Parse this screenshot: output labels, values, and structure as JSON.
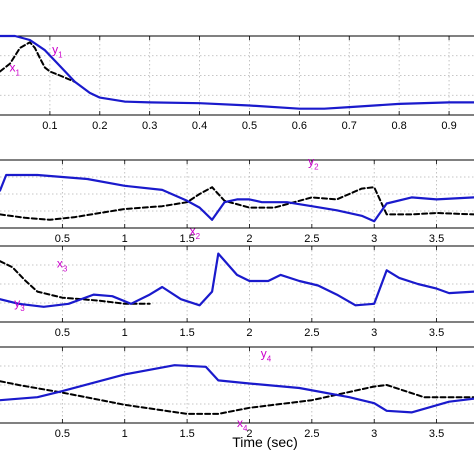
{
  "figure": {
    "xlabel": "Time (sec)"
  },
  "colors": {
    "solid": "#1a1acc",
    "dashed": "#000000",
    "label": "#cc00cc",
    "grid": "#b4b4b4"
  },
  "chart_data": [
    {
      "type": "line",
      "xlim": [
        0,
        0.95
      ],
      "xticks": [
        0.1,
        0.2,
        0.3,
        0.4,
        0.5,
        0.6,
        0.7,
        0.8,
        0.9
      ],
      "xtick_labels": [
        "0.1",
        "0.2",
        "0.3",
        "0.4",
        "0.5",
        "0.6",
        "0.7",
        "0.8",
        "0.9"
      ],
      "ylim": [
        0,
        1
      ],
      "grid": true,
      "series": [
        {
          "name": "y1",
          "style": "solid",
          "x": [
            0,
            0.03,
            0.06,
            0.09,
            0.12,
            0.15,
            0.18,
            0.2,
            0.25,
            0.3,
            0.4,
            0.5,
            0.6,
            0.65,
            0.7,
            0.8,
            0.9,
            0.95
          ],
          "y": [
            1.0,
            1.0,
            0.95,
            0.82,
            0.62,
            0.42,
            0.28,
            0.22,
            0.17,
            0.16,
            0.15,
            0.12,
            0.08,
            0.08,
            0.1,
            0.14,
            0.16,
            0.16
          ]
        },
        {
          "name": "x1",
          "style": "dashed",
          "x": [
            0,
            0.02,
            0.04,
            0.06,
            0.07,
            0.08,
            0.09,
            0.1,
            0.12,
            0.15
          ],
          "y": [
            0.55,
            0.65,
            0.85,
            0.92,
            0.85,
            0.72,
            0.6,
            0.55,
            0.5,
            0.42
          ]
        }
      ],
      "labels": [
        {
          "text": "y",
          "sub": "1",
          "x": 0.11,
          "y": 0.78
        },
        {
          "text": "x",
          "sub": "1",
          "x": 0.02,
          "y": 0.55
        }
      ]
    },
    {
      "type": "line",
      "xlim": [
        0,
        3.8
      ],
      "xticks": [
        0.5,
        1,
        1.5,
        2,
        2.5,
        3,
        3.5
      ],
      "xtick_labels": [
        "0.5",
        "1",
        "1.5",
        "2",
        "2.5",
        "3",
        "3.5"
      ],
      "ylim": [
        0,
        1
      ],
      "grid": true,
      "series": [
        {
          "name": "y2",
          "style": "solid",
          "x": [
            0,
            0.05,
            0.3,
            0.7,
            1.0,
            1.3,
            1.5,
            1.6,
            1.7,
            1.8,
            1.9,
            2.0,
            2.1,
            2.3,
            2.5,
            2.7,
            2.9,
            3.0,
            3.1,
            3.3,
            3.5,
            3.8
          ],
          "y": [
            0.55,
            0.78,
            0.78,
            0.72,
            0.62,
            0.56,
            0.4,
            0.3,
            0.12,
            0.38,
            0.42,
            0.42,
            0.38,
            0.38,
            0.32,
            0.26,
            0.18,
            0.1,
            0.36,
            0.45,
            0.42,
            0.45
          ]
        },
        {
          "name": "x2",
          "style": "dashed",
          "x": [
            0,
            0.2,
            0.4,
            0.6,
            0.8,
            1.0,
            1.3,
            1.5,
            1.6,
            1.7,
            1.8,
            2.0,
            2.2,
            2.5,
            2.7,
            2.9,
            3.0,
            3.1,
            3.3,
            3.5,
            3.8
          ],
          "y": [
            0.2,
            0.15,
            0.12,
            0.16,
            0.22,
            0.28,
            0.32,
            0.38,
            0.5,
            0.6,
            0.4,
            0.3,
            0.3,
            0.45,
            0.42,
            0.58,
            0.6,
            0.2,
            0.2,
            0.22,
            0.2
          ]
        }
      ],
      "labels": [
        {
          "text": "y",
          "sub": "2",
          "x": 0.65,
          "y": 0.92
        },
        {
          "text": "x",
          "sub": "2",
          "x": 0.4,
          "y": -0.1
        }
      ]
    },
    {
      "type": "line",
      "xlim": [
        0,
        3.8
      ],
      "xticks": [
        0.5,
        1,
        1.5,
        2,
        2.5,
        3,
        3.5
      ],
      "xtick_labels": [
        "0.5",
        "1",
        "1.5",
        "2",
        "2.5",
        "3",
        "3.5"
      ],
      "ylim": [
        0,
        1
      ],
      "grid": true,
      "series": [
        {
          "name": "y3",
          "style": "solid",
          "x": [
            0,
            0.15,
            0.35,
            0.55,
            0.75,
            0.9,
            1.05,
            1.2,
            1.3,
            1.45,
            1.6,
            1.7,
            1.75,
            1.9,
            2.0,
            2.15,
            2.25,
            2.4,
            2.55,
            2.7,
            2.85,
            3.0,
            3.1,
            3.2,
            3.35,
            3.5,
            3.6,
            3.8
          ],
          "y": [
            0.3,
            0.24,
            0.2,
            0.24,
            0.36,
            0.34,
            0.24,
            0.36,
            0.46,
            0.3,
            0.22,
            0.4,
            0.9,
            0.62,
            0.54,
            0.54,
            0.62,
            0.54,
            0.48,
            0.36,
            0.22,
            0.24,
            0.68,
            0.58,
            0.5,
            0.44,
            0.38,
            0.4
          ]
        },
        {
          "name": "x3",
          "style": "dashed",
          "x": [
            0,
            0.1,
            0.2,
            0.3,
            0.5,
            0.8,
            1.0,
            1.2
          ],
          "y": [
            0.8,
            0.72,
            0.55,
            0.4,
            0.32,
            0.28,
            0.24,
            0.24
          ]
        }
      ],
      "labels": [
        {
          "text": "x",
          "sub": "3",
          "x": 0.12,
          "y": 0.72
        },
        {
          "text": "y",
          "sub": "3",
          "x": 0.03,
          "y": 0.2
        }
      ]
    },
    {
      "type": "line",
      "xlim": [
        0,
        3.8
      ],
      "xticks": [
        0.5,
        1,
        1.5,
        2,
        2.5,
        3,
        3.5
      ],
      "xtick_labels": [
        "0.5",
        "1",
        "1.5",
        "2",
        "2.5",
        "3",
        "3.5"
      ],
      "ylim": [
        0,
        1
      ],
      "grid": true,
      "series": [
        {
          "name": "y4",
          "style": "solid",
          "x": [
            0,
            0.3,
            0.5,
            1.0,
            1.4,
            1.65,
            1.75,
            2.0,
            2.4,
            2.8,
            3.0,
            3.1,
            3.3,
            3.6,
            3.8
          ],
          "y": [
            0.3,
            0.34,
            0.42,
            0.64,
            0.76,
            0.74,
            0.56,
            0.52,
            0.46,
            0.34,
            0.26,
            0.16,
            0.14,
            0.28,
            0.32
          ]
        },
        {
          "name": "x4",
          "style": "dashed",
          "x": [
            0,
            0.15,
            0.5,
            1.0,
            1.5,
            1.75,
            2.0,
            2.5,
            3.0,
            3.1,
            3.4,
            3.8
          ],
          "y": [
            0.55,
            0.5,
            0.4,
            0.24,
            0.12,
            0.12,
            0.2,
            0.3,
            0.48,
            0.5,
            0.34,
            0.34
          ]
        }
      ],
      "labels": [
        {
          "text": "y",
          "sub": "4",
          "x": 0.55,
          "y": 0.86
        },
        {
          "text": "x",
          "sub": "4",
          "x": 0.5,
          "y": -0.05
        }
      ]
    }
  ]
}
